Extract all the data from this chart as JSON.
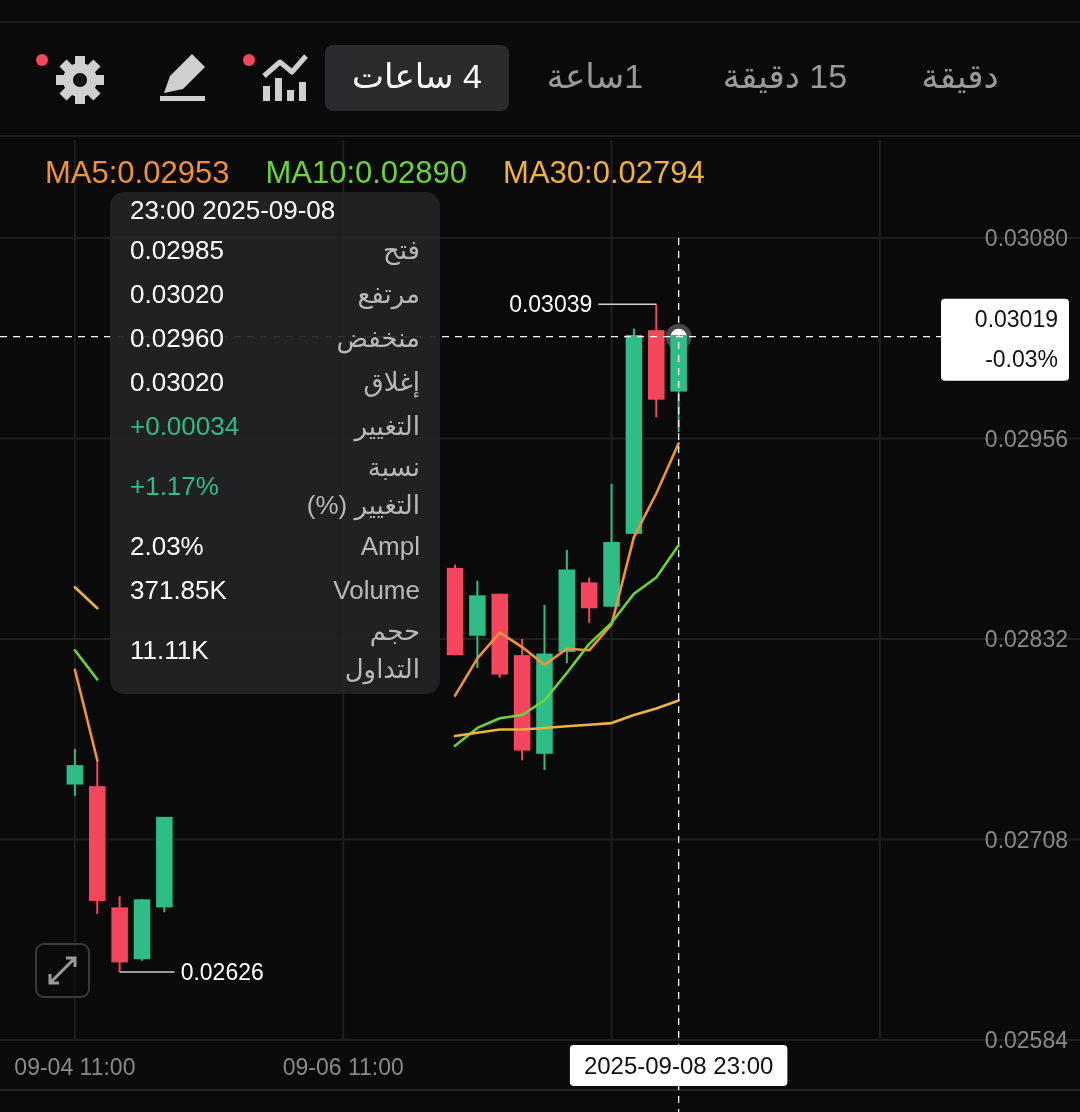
{
  "chart_data": [
    {
      "type": "other",
      "annotations": [
        "دقيقة",
        "15 دقيقة",
        "1ساعة",
        "4 ساعات"
      ]
    },
    {
      "type": "candlestick",
      "x": [
        "2025-09-04T11:00",
        "2025-09-04T15:00",
        "2025-09-04T19:00",
        "2025-09-04T23:00",
        "2025-09-05T03:00",
        "2025-09-07T07:00",
        "2025-09-07T11:00",
        "2025-09-07T15:00",
        "2025-09-07T19:00",
        "2025-09-07T23:00",
        "2025-09-08T03:00",
        "2025-09-08T07:00",
        "2025-09-08T11:00",
        "2025-09-08T15:00",
        "2025-09-08T19:00",
        "2025-09-08T23:00"
      ],
      "ohlc": [
        [
          0.02742,
          0.02764,
          0.02735,
          0.02754
        ],
        [
          0.02741,
          0.02758,
          0.02662,
          0.0267
        ],
        [
          0.02666,
          0.02673,
          0.02626,
          0.02632
        ],
        [
          0.02634,
          0.02671,
          0.02633,
          0.02671
        ],
        [
          0.02666,
          0.02722,
          0.02663,
          0.02722
        ],
        [
          0.02876,
          0.02878,
          0.02822,
          0.02822
        ],
        [
          0.02834,
          0.02868,
          0.02814,
          0.02859
        ],
        [
          0.0286,
          0.0286,
          0.02808,
          0.0281
        ],
        [
          0.02822,
          0.02832,
          0.02757,
          0.02763
        ],
        [
          0.02761,
          0.02853,
          0.02751,
          0.02823
        ],
        [
          0.02824,
          0.02887,
          0.02817,
          0.02875
        ],
        [
          0.02867,
          0.0287,
          0.02842,
          0.02851
        ],
        [
          0.02852,
          0.02928,
          0.02852,
          0.02892
        ],
        [
          0.02897,
          0.03024,
          0.02897,
          0.0302
        ],
        [
          0.03023,
          0.03039,
          0.02969,
          0.0298
        ],
        [
          0.02985,
          0.0302,
          0.0296,
          0.0302
        ]
      ],
      "colors": [
        "#2ebd85",
        "#f6465d",
        "#f6465d",
        "#2ebd85",
        "#2ebd85",
        "#f6465d",
        "#2ebd85",
        "#f6465d",
        "#f6465d",
        "#2ebd85",
        "#2ebd85",
        "#f6465d",
        "#2ebd85",
        "#2ebd85",
        "#f6465d",
        "#2ebd85"
      ],
      "series": [
        {
          "name": "MA5:0.02953",
          "type": "line",
          "color": "#f0923a",
          "values": [
            0.02813,
            0.02757,
            null,
            null,
            null,
            0.02797,
            0.0282,
            0.02836,
            0.02827,
            0.02816,
            0.02826,
            0.02825,
            0.02841,
            0.02895,
            0.02922,
            0.02953
          ]
        },
        {
          "name": "MA10:0.02890",
          "type": "line",
          "color": "#6bd43a",
          "values": [
            0.02825,
            0.02807,
            null,
            null,
            null,
            0.02766,
            0.02777,
            0.02783,
            0.02785,
            0.02794,
            0.02811,
            0.02829,
            0.02842,
            0.0286,
            0.0287,
            0.0289
          ]
        },
        {
          "name": "MA30:0.02794",
          "type": "line",
          "color": "#f2b33d",
          "values": [
            0.02864,
            0.02851,
            null,
            null,
            null,
            0.02772,
            0.02774,
            0.02776,
            0.02776,
            0.02777,
            0.02778,
            0.02779,
            0.0278,
            0.02785,
            0.02789,
            0.02794
          ]
        }
      ],
      "xlim": [
        "2025-09-03T21:36",
        "2025-09-11T22:48"
      ],
      "ylim": [
        0.02584,
        0.0308
      ],
      "xticks": [
        {
          "value": "2025-09-04T11:00",
          "label": "09-04 11:00"
        },
        {
          "value": "2025-09-06T11:00",
          "label": "09-06 11:00"
        },
        {
          "value": "2025-09-08T11:00",
          "label": null
        },
        {
          "value": "2025-09-10T11:00",
          "label": null
        }
      ],
      "yticks": [
        {
          "value": 0.0308,
          "label": "0.03080"
        },
        0.02956,
        0.02832,
        0.02708,
        0.02584
      ],
      "grid": true,
      "legend": "top left",
      "ref_lines": [
        {
          "axis": "x",
          "value": "2025-09-08T23:00",
          "label": "2025-09-08 23:00",
          "color": "#ffffff",
          "line_style": "dashed"
        },
        {
          "axis": "y",
          "value": 0.03019,
          "label": "0.03019\n-0.03%",
          "color": "#ffffff",
          "line_style": "dashed"
        }
      ],
      "annotations": [
        {
          "text": "0.03039",
          "x": "2025-09-08T19:00",
          "y": 0.03039
        },
        {
          "text": "0.02626",
          "x": "2025-09-04T19:00",
          "y": 0.02626
        }
      ]
    },
    {
      "type": "other",
      "title": "23:00 2025-09-08",
      "annotations": [
        "فتح",
        "0.02985",
        "مرتفع",
        "0.03020",
        "منخفض",
        "0.02960",
        "إغلاق",
        "0.03020",
        "التغيير",
        "+0.00034",
        "نسبة التغيير (%)",
        "+1.17%",
        "Ampl",
        "2.03%",
        "Volume",
        "371.85K",
        "حجم التداول",
        "11.11K"
      ]
    }
  ]
}
